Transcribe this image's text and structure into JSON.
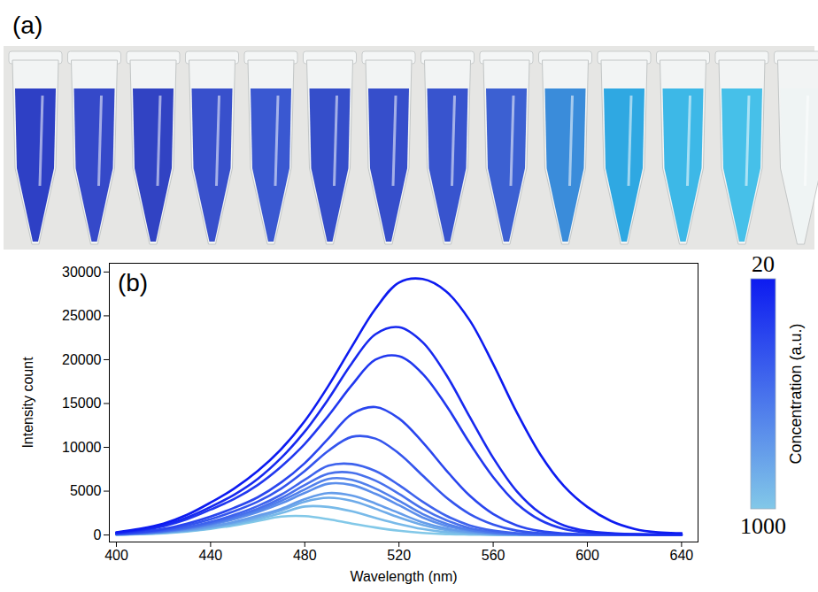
{
  "panel_a": {
    "label": "(a)"
  },
  "chart_data": {
    "type": "line",
    "panel_label": "(b)",
    "x_label": "Wavelength (nm)",
    "y_label": "Intensity count",
    "x": [
      400,
      410,
      420,
      430,
      440,
      450,
      460,
      470,
      480,
      490,
      500,
      510,
      520,
      530,
      540,
      550,
      560,
      570,
      580,
      590,
      600,
      610,
      620,
      630,
      640
    ],
    "xlim": [
      397,
      647
    ],
    "xticks": [
      400,
      440,
      480,
      520,
      560,
      600,
      640
    ],
    "ylim": [
      -800,
      31000
    ],
    "yticks": [
      0,
      5000,
      10000,
      15000,
      20000,
      25000,
      30000
    ],
    "grid": false,
    "line_style": "solid",
    "series": [
      {
        "color": "#0d1bf0",
        "values": [
          300,
          700,
          1300,
          2300,
          3700,
          5300,
          7300,
          9800,
          13000,
          17000,
          21500,
          25800,
          28800,
          29200,
          27800,
          24500,
          19500,
          14000,
          9200,
          5600,
          3200,
          1600,
          700,
          300,
          200
        ]
      },
      {
        "color": "#1729ef",
        "values": [
          250,
          600,
          1100,
          2000,
          3200,
          4600,
          6400,
          8800,
          11800,
          15500,
          19600,
          22900,
          23700,
          22000,
          18300,
          13500,
          8800,
          5000,
          2500,
          1100,
          450,
          200,
          100,
          50,
          50
        ]
      },
      {
        "color": "#2138ef",
        "values": [
          200,
          500,
          1000,
          1800,
          2900,
          4100,
          5700,
          7800,
          10400,
          13600,
          17100,
          20000,
          20400,
          18400,
          14800,
          10500,
          6600,
          3600,
          1700,
          700,
          300,
          150,
          80,
          50,
          50
        ]
      },
      {
        "color": "#2a46ee",
        "values": [
          150,
          350,
          700,
          1300,
          2100,
          3100,
          4300,
          6000,
          8200,
          11000,
          13800,
          14600,
          13300,
          10600,
          7400,
          4500,
          2400,
          1100,
          450,
          180,
          80,
          50,
          30,
          20,
          20
        ]
      },
      {
        "color": "#3455ed",
        "values": [
          120,
          300,
          600,
          1100,
          1800,
          2700,
          3800,
          5300,
          7300,
          9600,
          11200,
          11000,
          9300,
          6800,
          4300,
          2400,
          1200,
          500,
          200,
          90,
          50,
          30,
          20,
          20,
          20
        ]
      },
      {
        "color": "#3e63ed",
        "values": [
          100,
          250,
          500,
          900,
          1500,
          2300,
          3300,
          4600,
          6300,
          7900,
          8100,
          7300,
          5700,
          3800,
          2200,
          1100,
          500,
          200,
          90,
          50,
          30,
          20,
          20,
          20,
          20
        ]
      },
      {
        "color": "#4871ec",
        "values": [
          90,
          220,
          450,
          800,
          1350,
          2100,
          3000,
          4200,
          5700,
          7000,
          7100,
          6200,
          4700,
          3000,
          1700,
          800,
          350,
          150,
          70,
          40,
          30,
          20,
          20,
          20,
          20
        ]
      },
      {
        "color": "#5180eb",
        "values": [
          80,
          200,
          400,
          750,
          1250,
          1950,
          2800,
          3900,
          5200,
          6400,
          6300,
          5300,
          3900,
          2400,
          1300,
          600,
          250,
          100,
          50,
          30,
          20,
          20,
          20,
          20,
          20
        ]
      },
      {
        "color": "#5b8eeb",
        "values": [
          70,
          180,
          370,
          680,
          1150,
          1800,
          2600,
          3600,
          4800,
          5850,
          5700,
          4700,
          3400,
          2000,
          1050,
          480,
          200,
          80,
          40,
          20,
          20,
          20,
          20,
          20,
          20
        ]
      },
      {
        "color": "#659dea",
        "values": [
          60,
          150,
          310,
          570,
          960,
          1500,
          2200,
          3000,
          4100,
          4780,
          4500,
          3600,
          2500,
          1450,
          750,
          330,
          130,
          60,
          30,
          20,
          20,
          20,
          20,
          20,
          20
        ]
      },
      {
        "color": "#6eabe9",
        "values": [
          50,
          130,
          280,
          520,
          880,
          1380,
          2000,
          2800,
          3800,
          4250,
          3900,
          3000,
          2000,
          1150,
          560,
          240,
          100,
          40,
          20,
          20,
          20,
          20,
          20,
          20,
          20
        ]
      },
      {
        "color": "#78bae9",
        "values": [
          40,
          110,
          240,
          460,
          780,
          1230,
          1800,
          2500,
          3250,
          3200,
          2700,
          1950,
          1250,
          680,
          320,
          130,
          50,
          30,
          20,
          20,
          20,
          20,
          20,
          20,
          20
        ]
      },
      {
        "color": "#82c8e8",
        "values": [
          30,
          90,
          200,
          400,
          700,
          1100,
          1600,
          2100,
          2150,
          1800,
          1300,
          850,
          480,
          240,
          100,
          50,
          20,
          20,
          20,
          20,
          20,
          20,
          20,
          20,
          20
        ]
      }
    ],
    "colorbar": {
      "range": [
        20,
        1000
      ],
      "ticks": [
        20,
        1000
      ],
      "label": "Concentration (a.u.)",
      "colors": [
        "#0d1bf0",
        "#82c8e8"
      ]
    }
  }
}
